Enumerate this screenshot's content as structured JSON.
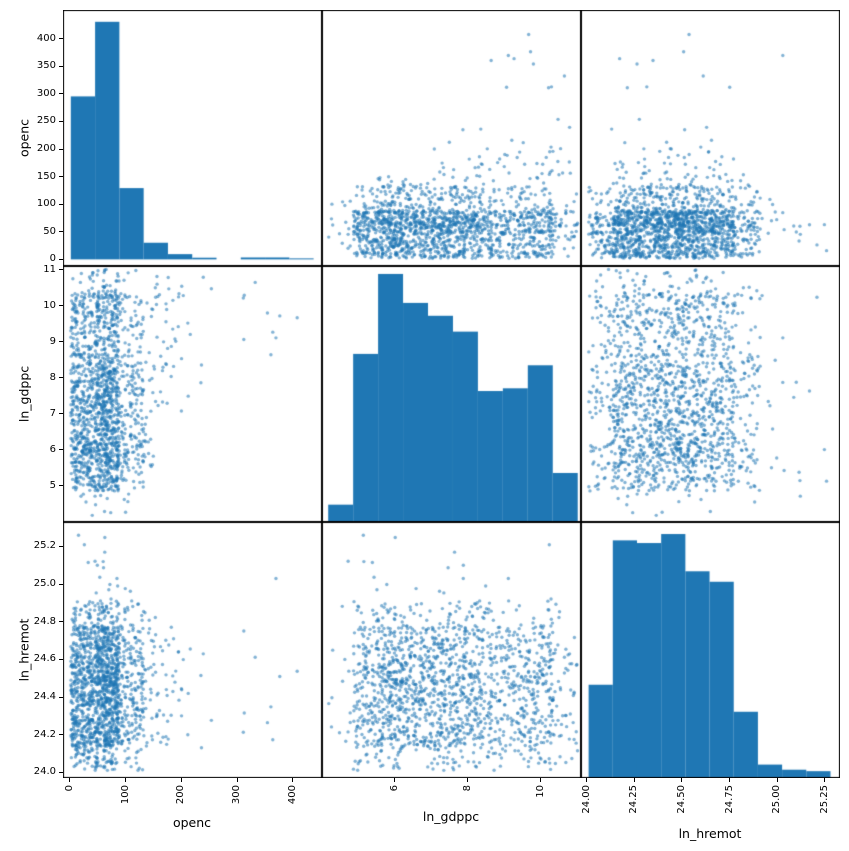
{
  "chart_data": {
    "type": "scatter_matrix",
    "diagonal": "histogram",
    "grid": "3x3",
    "background": "#ffffff",
    "spine_color": "#000000",
    "tick_color": "#000000",
    "label_color": "#000000",
    "bar_color": "#1f77b4",
    "marker": {
      "color": "#1f77b4",
      "alpha": 0.55,
      "radius_px": 1.7
    },
    "estimated_n_points": 1600,
    "seed": 11,
    "correlation_hint": {
      "note": "high openc values occur at mid-to-high ln_gdppc",
      "openc_threshold": 150,
      "ln_gdppc_min": 6.9,
      "ln_gdppc_span": 4.0,
      "exponent": 0.75
    },
    "variables": [
      {
        "name": "openc",
        "axis_range": [
          -12,
          452
        ],
        "x_tick_values": [
          0,
          100,
          200,
          300,
          400
        ],
        "x_tick_labels": [
          "0",
          "100",
          "200",
          "300",
          "400"
        ],
        "y_tick_values": [
          0,
          50,
          100,
          150,
          200,
          250,
          300,
          350,
          400
        ],
        "y_tick_labels": [
          "0",
          "50",
          "100",
          "150",
          "200",
          "250",
          "300",
          "350",
          "400"
        ],
        "hist": {
          "bin_start": 2,
          "bin_width": 43.5,
          "heights_frac_of_max": [
            0.686,
            1.0,
            0.3,
            0.07,
            0.022,
            0.007,
            0.0,
            0.008,
            0.008,
            0.004
          ],
          "max_bar_frac": 0.928,
          "baseline": "data_zero"
        }
      },
      {
        "name": "ln_gdppc",
        "axis_range": [
          4.0,
          11.1
        ],
        "x_tick_values": [
          6,
          8,
          10
        ],
        "x_tick_labels": [
          "6",
          "8",
          "10"
        ],
        "y_tick_values": [
          5,
          6,
          7,
          8,
          9,
          10,
          11
        ],
        "y_tick_labels": [
          "5",
          "6",
          "7",
          "8",
          "9",
          "10",
          "11"
        ],
        "hist": {
          "bin_start": 4.17,
          "bin_width": 0.684,
          "heights_frac_of_max": [
            0.068,
            0.677,
            1.0,
            0.883,
            0.831,
            0.767,
            0.527,
            0.538,
            0.631,
            0.196
          ],
          "max_bar_frac": 0.967,
          "baseline": "panel_bottom"
        }
      },
      {
        "name": "ln_hremot",
        "axis_range": [
          23.97,
          25.33
        ],
        "x_tick_values": [
          24.0,
          24.25,
          24.5,
          24.75,
          25.0,
          25.25
        ],
        "x_tick_labels": [
          "24.00",
          "24.25",
          "24.50",
          "24.75",
          "25.00",
          "25.25"
        ],
        "y_tick_values": [
          24.0,
          24.2,
          24.4,
          24.6,
          24.8,
          25.0,
          25.2
        ],
        "y_tick_labels": [
          "24.0",
          "24.2",
          "24.4",
          "24.6",
          "24.8",
          "25.0",
          "25.2"
        ],
        "hist": {
          "bin_start": 24.01,
          "bin_width": 0.127,
          "heights_frac_of_max": [
            0.381,
            0.974,
            0.963,
            1.0,
            0.847,
            0.804,
            0.27,
            0.053,
            0.032,
            0.026
          ],
          "max_bar_frac": 0.951,
          "baseline": "panel_bottom"
        }
      }
    ]
  }
}
